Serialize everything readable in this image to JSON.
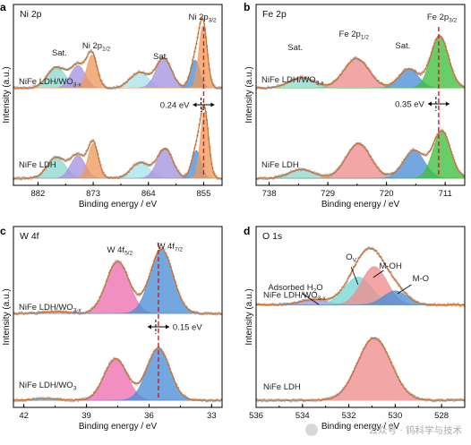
{
  "chart_data": [
    {
      "id": "a",
      "panel_label": "a",
      "type": "line",
      "title": "Ni 2p",
      "xlabel": "Binding energy / eV",
      "ylabel": "Intensity (a.u.)",
      "xlim": [
        886,
        852
      ],
      "xticks": [
        882,
        873,
        864,
        855
      ],
      "xtick_labels": [
        "882",
        "873",
        "864",
        "855"
      ],
      "annotations": [
        {
          "text": "Sat.",
          "x": 878.5
        },
        {
          "text": "Ni 2p",
          "sub": "1/2",
          "x": 872.5
        },
        {
          "text": "Sat.",
          "x": 862.0
        },
        {
          "text": "Ni 2p",
          "sub": "3/2",
          "x": 855.2
        }
      ],
      "shift_label": "0.24 eV",
      "shift_x": 855.0,
      "series": [
        {
          "name": "NiFe LDH/WO3-x",
          "label_text": "NiFe LDH/WO",
          "label_sub": "3-x",
          "offset": 0.52,
          "baseline": 0.02,
          "peaks": [
            {
              "center": 879.0,
              "fwhm": 3.5,
              "height": 0.12,
              "color": "#8ed9d0"
            },
            {
              "center": 875.5,
              "fwhm": 2.8,
              "height": 0.13,
              "color": "#a593e0"
            },
            {
              "center": 873.2,
              "fwhm": 2.0,
              "height": 0.19,
              "color": "#ec9a5c"
            },
            {
              "center": 865.5,
              "fwhm": 3.5,
              "height": 0.09,
              "color": "#a6e3ea"
            },
            {
              "center": 861.5,
              "fwhm": 3.0,
              "height": 0.17,
              "color": "#a593e0"
            },
            {
              "center": 856.4,
              "fwhm": 1.8,
              "height": 0.16,
              "color": "#4a8fd6"
            },
            {
              "center": 855.1,
              "fwhm": 1.6,
              "height": 0.36,
              "color": "#ec9a5c"
            }
          ]
        },
        {
          "name": "NiFe LDH",
          "label_text": "NiFe LDH",
          "label_sub": "",
          "offset": 0.0,
          "baseline": 0.02,
          "peaks": [
            {
              "center": 879.0,
              "fwhm": 3.5,
              "height": 0.12,
              "color": "#8ed9d0"
            },
            {
              "center": 875.5,
              "fwhm": 2.8,
              "height": 0.13,
              "color": "#a593e0"
            },
            {
              "center": 873.0,
              "fwhm": 2.0,
              "height": 0.2,
              "color": "#ec9a5c"
            },
            {
              "center": 865.3,
              "fwhm": 3.5,
              "height": 0.09,
              "color": "#a6e3ea"
            },
            {
              "center": 861.3,
              "fwhm": 3.0,
              "height": 0.17,
              "color": "#a593e0"
            },
            {
              "center": 856.2,
              "fwhm": 1.8,
              "height": 0.16,
              "color": "#4a8fd6"
            },
            {
              "center": 854.86,
              "fwhm": 1.6,
              "height": 0.38,
              "color": "#ec9a5c"
            }
          ]
        }
      ]
    },
    {
      "id": "b",
      "panel_label": "b",
      "type": "line",
      "title": "Fe 2p",
      "xlabel": "Binding energy / eV",
      "ylabel": "Intensity (a.u.)",
      "xlim": [
        740,
        708
      ],
      "xticks": [
        738,
        729,
        720,
        711
      ],
      "xtick_labels": [
        "738",
        "729",
        "720",
        "711"
      ],
      "annotations": [
        {
          "text": "Sat.",
          "x": 734.0
        },
        {
          "text": "Fe 2p",
          "sub": "1/2",
          "x": 725.0
        },
        {
          "text": "Sat.",
          "x": 717.5
        },
        {
          "text": "Fe 2p",
          "sub": "3/2",
          "x": 711.5
        }
      ],
      "shift_label": "0.35 eV",
      "shift_x": 712.0,
      "series": [
        {
          "name": "NiFe LDH/WO3-x",
          "label_text": "NiFe LDH/WO",
          "label_sub": "3-x",
          "offset": 0.52,
          "baseline": 0.02,
          "peaks": [
            {
              "center": 733.0,
              "fwhm": 4.5,
              "height": 0.06,
              "color": "#8ed9d0"
            },
            {
              "center": 724.6,
              "fwhm": 4.5,
              "height": 0.17,
              "color": "#ee8d8d"
            },
            {
              "center": 716.6,
              "fwhm": 3.5,
              "height": 0.11,
              "color": "#4a8fd6"
            },
            {
              "center": 711.85,
              "fwhm": 3.2,
              "height": 0.3,
              "color": "#3fbf3f"
            }
          ]
        },
        {
          "name": "NiFe LDH",
          "label_text": "NiFe LDH",
          "label_sub": "",
          "offset": 0.0,
          "baseline": 0.02,
          "peaks": [
            {
              "center": 733.0,
              "fwhm": 4.5,
              "height": 0.05,
              "color": "#8ed9d0"
            },
            {
              "center": 724.3,
              "fwhm": 4.5,
              "height": 0.2,
              "color": "#ee8d8d"
            },
            {
              "center": 715.8,
              "fwhm": 3.8,
              "height": 0.16,
              "color": "#4a8fd6"
            },
            {
              "center": 711.5,
              "fwhm": 3.2,
              "height": 0.27,
              "color": "#3fbf3f"
            }
          ]
        }
      ]
    },
    {
      "id": "c",
      "panel_label": "c",
      "type": "line",
      "title": "W 4f",
      "xlabel": "Binding energy / eV",
      "ylabel": "Intensity (a.u.)",
      "xlim": [
        42.5,
        32.5
      ],
      "xticks": [
        42,
        39,
        36,
        33
      ],
      "xtick_labels": [
        "42",
        "39",
        "36",
        "33"
      ],
      "annotations": [
        {
          "text": "W 4f",
          "sub": "5/2",
          "x": 37.4
        },
        {
          "text": "W 4f",
          "sub": "7/2",
          "x": 35.0
        }
      ],
      "shift_label": "0.15 eV",
      "shift_x": 35.55,
      "series": [
        {
          "name": "NiFe LDH/WO3-x",
          "label_text": "NiFe LDH/WO",
          "label_sub": "3-x",
          "offset": 0.5,
          "baseline": 0.02,
          "peaks": [
            {
              "center": 40.5,
              "fwhm": 1.5,
              "height": 0.01,
              "color": "#8ed9d0"
            },
            {
              "center": 37.5,
              "fwhm": 1.3,
              "height": 0.3,
              "color": "#ee6fb0"
            },
            {
              "center": 35.4,
              "fwhm": 1.3,
              "height": 0.37,
              "color": "#4a8fd6"
            }
          ]
        },
        {
          "name": "NiFe LDH/WO3",
          "label_text": "NiFe LDH/WO",
          "label_sub": "3",
          "offset": 0.0,
          "baseline": 0.02,
          "peaks": [
            {
              "center": 41.0,
              "fwhm": 1.5,
              "height": 0.01,
              "color": "#8ed9d0"
            },
            {
              "center": 37.6,
              "fwhm": 1.3,
              "height": 0.24,
              "color": "#ee6fb0"
            },
            {
              "center": 35.55,
              "fwhm": 1.3,
              "height": 0.3,
              "color": "#4a8fd6"
            }
          ]
        }
      ]
    },
    {
      "id": "d",
      "panel_label": "d",
      "type": "line",
      "title": "O 1s",
      "xlabel": "Binding energy / eV",
      "ylabel": "Intensity (a.u.)",
      "xlim": [
        536,
        527
      ],
      "xticks": [
        536,
        534,
        532,
        530,
        528
      ],
      "xtick_labels": [
        "536",
        "534",
        "532",
        "530",
        "528"
      ],
      "annotations": [
        {
          "text": "Adsorbed H",
          "sub": "2",
          "tail": "O",
          "x": 534.3
        },
        {
          "text": "O",
          "sub": "V",
          "x": 531.9
        },
        {
          "text": "M-OH",
          "x": 530.2
        },
        {
          "text": "M-O",
          "x": 528.9
        }
      ],
      "series": [
        {
          "name": "NiFe LDH/WO3-x",
          "label_text": "NiFe LDH/WO",
          "label_sub": "3-x",
          "offset": 0.55,
          "baseline": 0.02,
          "peaks": [
            {
              "center": 533.5,
              "fwhm": 1.4,
              "height": 0.03,
              "color": "#a593e0"
            },
            {
              "center": 531.6,
              "fwhm": 1.4,
              "height": 0.16,
              "color": "#74d8d2"
            },
            {
              "center": 530.9,
              "fwhm": 1.3,
              "height": 0.22,
              "color": "#ee8d8d"
            },
            {
              "center": 530.0,
              "fwhm": 1.2,
              "height": 0.08,
              "color": "#4a8fd6"
            }
          ]
        },
        {
          "name": "NiFe LDH",
          "label_text": "NiFe LDH",
          "label_sub": "",
          "offset": 0.0,
          "baseline": 0.02,
          "peaks": [
            {
              "center": 530.9,
              "fwhm": 1.7,
              "height": 0.36,
              "color": "#ee8d8d"
            }
          ]
        }
      ]
    }
  ],
  "watermark": "公众号 · 钨科学与技术"
}
